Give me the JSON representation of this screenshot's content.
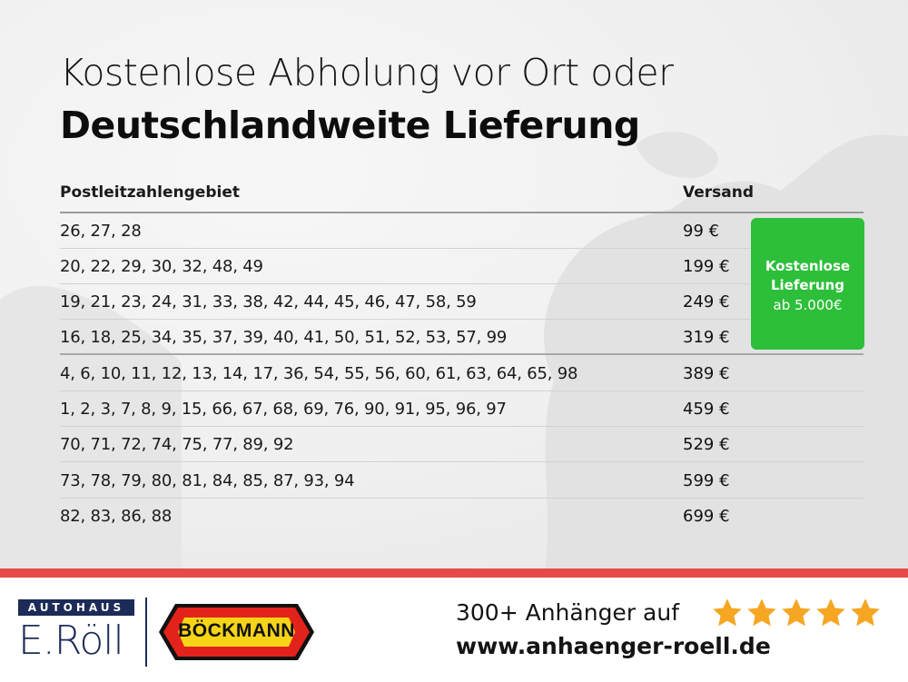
{
  "title": {
    "line1": "Kostenlose Abholung vor Ort oder",
    "line2": "Deutschlandweite Lieferung"
  },
  "table": {
    "headers": {
      "postal": "Postleitzahlengebiet",
      "shipping": "Versand"
    },
    "rows": [
      {
        "postal": "26, 27, 28",
        "price": "99 €"
      },
      {
        "postal": "20, 22, 29, 30, 32, 48, 49",
        "price": "199 €"
      },
      {
        "postal": "19, 21, 23, 24, 31, 33, 38, 42, 44, 45, 46, 47, 58, 59",
        "price": "249 €"
      },
      {
        "postal": "16, 18, 25, 34, 35, 37, 39, 40, 41, 50, 51, 52, 53, 57, 99",
        "price": "319 €"
      },
      {
        "postal": "4, 6, 10, 11, 12, 13, 14, 17, 36, 54, 55, 56, 60, 61, 63, 64, 65, 98",
        "price": "389 €"
      },
      {
        "postal": "1, 2, 3, 7, 8, 9, 15, 66, 67, 68, 69, 76, 90, 91, 95, 96, 97",
        "price": "459 €"
      },
      {
        "postal": "70, 71, 72, 74, 75, 77, 89, 92",
        "price": "529 €"
      },
      {
        "postal": "73, 78, 79, 80, 81, 84, 85, 87, 93, 94",
        "price": "599 €"
      },
      {
        "postal": "82, 83, 86, 88",
        "price": "699 €"
      }
    ]
  },
  "free_delivery": {
    "line1": "Kostenlose",
    "line2": "Lieferung",
    "line3": "ab 5.000€",
    "color": "#2dbf3a"
  },
  "footer": {
    "roell_badge": "AUTOHAUS",
    "roell_name": "E.Röll",
    "boeckmann": "BÖCKMANN",
    "tagline": "300+ Anhänger auf",
    "rating_stars": 5,
    "url": "www.anhaenger-roell.de",
    "accent_color": "#e84a47",
    "star_color": "#f5a623",
    "brand_navy": "#1c2b57"
  }
}
